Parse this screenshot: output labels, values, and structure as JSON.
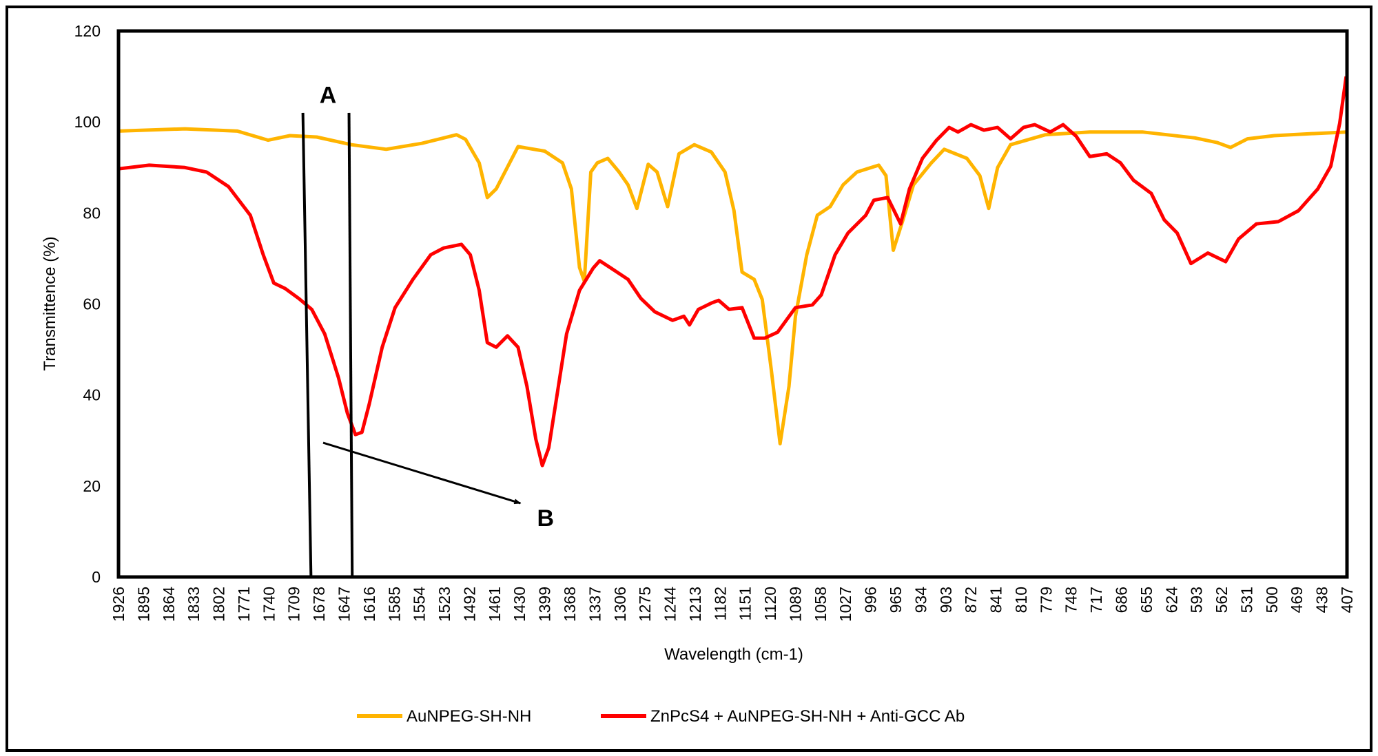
{
  "chart_data": {
    "type": "line",
    "title": "",
    "xlabel": "Wavelength (cm-1)",
    "ylabel": "Transmittence (%)",
    "xlim": [
      1926,
      407
    ],
    "x_reversed": true,
    "ylim": [
      0,
      120
    ],
    "yticks": [
      "0",
      "20",
      "40",
      "60",
      "80",
      "100",
      "120"
    ],
    "xticks": [
      "1926",
      "1895",
      "1864",
      "1833",
      "1802",
      "1771",
      "1740",
      "1709",
      "1678",
      "1647",
      "1616",
      "1585",
      "1554",
      "1523",
      "1492",
      "1461",
      "1430",
      "1399",
      "1368",
      "1337",
      "1306",
      "1275",
      "1244",
      "1213",
      "1182",
      "1151",
      "1120",
      "1089",
      "1058",
      "1027",
      "996",
      "965",
      "934",
      "903",
      "872",
      "841",
      "810",
      "779",
      "748",
      "717",
      "686",
      "655",
      "624",
      "593",
      "562",
      "531",
      "500",
      "469",
      "438",
      "407"
    ],
    "grid": false,
    "legend_position": "bottom",
    "series": [
      {
        "name": "AuNPEG-SH-NH",
        "color": "#FFB400",
        "x": [
          1926,
          1844,
          1779,
          1741,
          1714,
          1681,
          1638,
          1595,
          1551,
          1508,
          1497,
          1480,
          1470,
          1459,
          1432,
          1399,
          1377,
          1366,
          1356,
          1350,
          1342,
          1334,
          1321,
          1307,
          1296,
          1285,
          1271,
          1260,
          1247,
          1233,
          1214,
          1193,
          1176,
          1165,
          1155,
          1140,
          1130,
          1119,
          1108,
          1097,
          1089,
          1075,
          1062,
          1046,
          1030,
          1013,
          986,
          977,
          968,
          956,
          943,
          921,
          905,
          877,
          861,
          850,
          839,
          823,
          780,
          725,
          660,
          595,
          568,
          551,
          530,
          497,
          443,
          407
        ],
        "y": [
          98,
          98.5,
          98,
          96,
          97,
          96.7,
          95,
          94,
          95.3,
          97.2,
          96.2,
          91,
          83.4,
          85.3,
          94.6,
          93.6,
          91,
          85.3,
          68,
          65,
          89,
          91,
          92,
          89,
          86.2,
          81,
          90.7,
          89,
          81.4,
          93,
          95,
          93.4,
          89,
          80.5,
          67,
          65.4,
          61,
          45.7,
          29.3,
          41.9,
          57.3,
          70.8,
          79.5,
          81.4,
          86.2,
          89,
          90.5,
          88.2,
          71.8,
          78.5,
          86.2,
          91,
          94,
          92,
          88.2,
          81,
          90,
          95,
          97.2,
          97.8,
          97.8,
          96.5,
          95.5,
          94.4,
          96.3,
          97,
          97.5,
          97.8
        ]
      },
      {
        "name": "ZnPcS4 + AuNPEG-SH-NH + Anti-GCC Ab",
        "color": "#FF0000",
        "x": [
          1926,
          1888,
          1844,
          1817,
          1790,
          1763,
          1747,
          1734,
          1720,
          1703,
          1687,
          1671,
          1654,
          1643,
          1633,
          1625,
          1616,
          1600,
          1584,
          1562,
          1540,
          1524,
          1502,
          1491,
          1480,
          1470,
          1459,
          1445,
          1432,
          1421,
          1410,
          1402,
          1394,
          1383,
          1372,
          1356,
          1339,
          1331,
          1312,
          1296,
          1280,
          1263,
          1241,
          1227,
          1220,
          1209,
          1193,
          1184,
          1171,
          1155,
          1140,
          1127,
          1111,
          1089,
          1068,
          1057,
          1040,
          1024,
          1002,
          992,
          975,
          967,
          959,
          948,
          932,
          915,
          899,
          888,
          872,
          856,
          839,
          823,
          807,
          793,
          774,
          758,
          742,
          725,
          704,
          687,
          671,
          649,
          633,
          617,
          600,
          579,
          557,
          541,
          519,
          492,
          467,
          443,
          427,
          416,
          408
        ],
        "y": [
          89.7,
          90.5,
          90,
          89,
          85.8,
          79.5,
          70.8,
          64.6,
          63.4,
          61.2,
          58.8,
          53.4,
          43.8,
          36,
          31.3,
          31.8,
          38,
          50.5,
          59.2,
          65.4,
          70.8,
          72.3,
          73.1,
          70.8,
          63,
          51.5,
          50.5,
          53,
          50.5,
          41.9,
          30.3,
          24.5,
          28.4,
          40.9,
          53.4,
          63,
          67.9,
          69.5,
          67.3,
          65.4,
          61.2,
          58.3,
          56.4,
          57.3,
          55.4,
          58.8,
          60.2,
          60.8,
          58.8,
          59.2,
          52.5,
          52.5,
          53.8,
          59.2,
          59.8,
          62,
          70.8,
          75.6,
          79.5,
          82.8,
          83.4,
          80.5,
          77.6,
          85.3,
          92,
          95.9,
          98.8,
          97.8,
          99.4,
          98.2,
          98.8,
          96.3,
          98.8,
          99.4,
          97.8,
          99.4,
          96.9,
          92.4,
          93,
          91,
          87.2,
          84.3,
          78.5,
          75.6,
          68.9,
          71.2,
          69.3,
          74.3,
          77.6,
          78.1,
          80.5,
          85.3,
          90.3,
          99.7,
          110
        ]
      }
    ],
    "annotations": {
      "label_a": {
        "text": "A",
        "x": 1667,
        "y": 106
      },
      "line_a1": {
        "x": [
          1698,
          1688
        ],
        "y": [
          102,
          0
        ]
      },
      "line_a2": {
        "x": [
          1641,
          1637
        ],
        "y": [
          102,
          0
        ]
      },
      "arrow_b": {
        "x": [
          1673,
          1429
        ],
        "y": [
          29.5,
          16.2
        ]
      },
      "label_b": {
        "text": "B",
        "x": 1398,
        "y": 13
      }
    }
  }
}
